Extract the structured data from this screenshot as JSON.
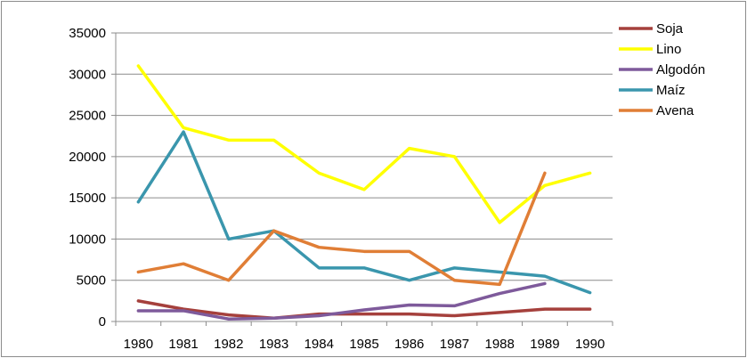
{
  "chart_data": {
    "type": "line",
    "title": "",
    "xlabel": "",
    "ylabel": "",
    "categories": [
      "1980",
      "1981",
      "1982",
      "1983",
      "1984",
      "1985",
      "1986",
      "1987",
      "1988",
      "1989",
      "1990"
    ],
    "ylim": [
      0,
      35000
    ],
    "yticks": [
      0,
      5000,
      10000,
      15000,
      20000,
      25000,
      30000,
      35000
    ],
    "grid": true,
    "legend_position": "right",
    "series": [
      {
        "name": "Soja",
        "color": "#a5403c",
        "values": [
          2500,
          1500,
          800,
          400,
          900,
          900,
          900,
          700,
          1100,
          1500,
          1500
        ]
      },
      {
        "name": "Lino",
        "color": "#ffff00",
        "values": [
          31000,
          23500,
          22000,
          22000,
          18000,
          16000,
          21000,
          20000,
          12000,
          16500,
          18000
        ]
      },
      {
        "name": "Algodón",
        "color": "#7e5a9b",
        "values": [
          1300,
          1300,
          300,
          400,
          700,
          1400,
          2000,
          1900,
          3400,
          4600,
          null
        ]
      },
      {
        "name": "Maíz",
        "color": "#3a96ad",
        "values": [
          14500,
          23000,
          10000,
          11000,
          6500,
          6500,
          5000,
          6500,
          6000,
          5500,
          3500
        ]
      },
      {
        "name": "Avena",
        "color": "#e07e36",
        "values": [
          6000,
          7000,
          5000,
          11000,
          9000,
          8500,
          8500,
          5000,
          4500,
          18000,
          null
        ]
      }
    ]
  }
}
